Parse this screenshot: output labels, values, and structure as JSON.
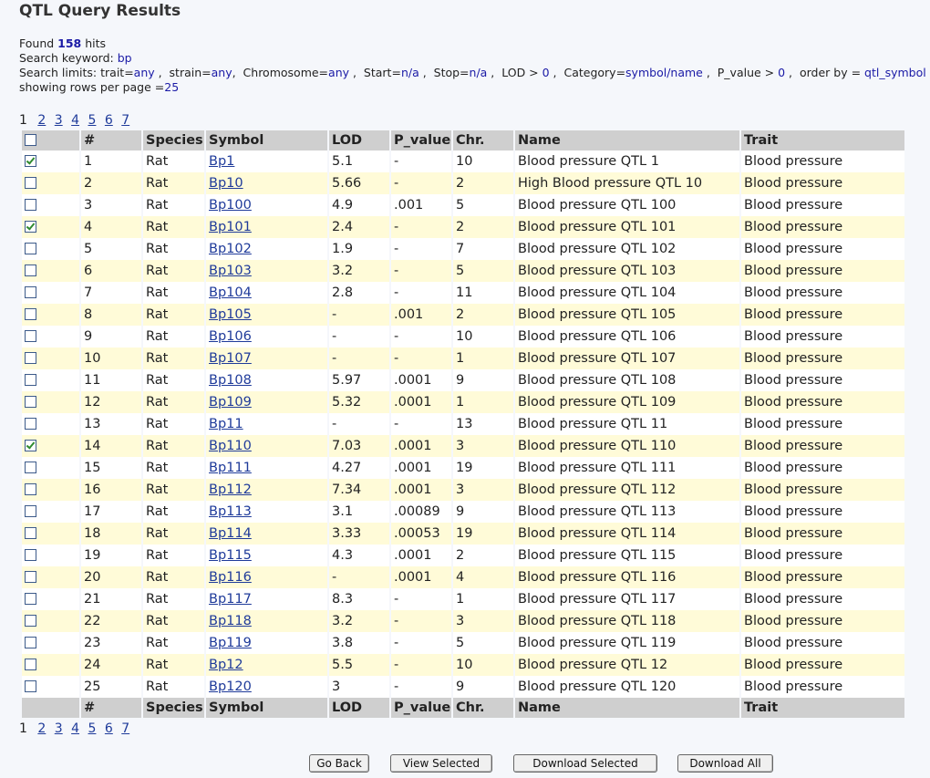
{
  "page": {
    "title": "QTL Query Results"
  },
  "summary": {
    "found_prefix": "Found",
    "found_count": "158",
    "found_suffix": "hits",
    "keyword_label": "Search keyword:",
    "keyword": "bp",
    "limits_label": "Search limits:",
    "trait": "any",
    "strain": "any",
    "chromosome": "any",
    "start": "n/a",
    "stop": "n/a",
    "lod": "0",
    "category": "symbol/name",
    "p_value": "0",
    "order_by": "qtl_symbol",
    "rows_per_page_label": "showing rows per page =",
    "rows_per_page": "25"
  },
  "pagination": {
    "current": "1",
    "pages": [
      "2",
      "3",
      "4",
      "5",
      "6",
      "7"
    ]
  },
  "table": {
    "headers": [
      "#",
      "Species",
      "Symbol",
      "LOD",
      "P_value",
      "Chr.",
      "Name",
      "Trait"
    ],
    "rows": [
      {
        "checked": true,
        "num": "1",
        "species": "Rat",
        "symbol": "Bp1",
        "lod": "5.1",
        "p": "-",
        "chr": "10",
        "name": "Blood pressure QTL 1",
        "trait": "Blood pressure"
      },
      {
        "checked": false,
        "num": "2",
        "species": "Rat",
        "symbol": "Bp10",
        "lod": "5.66",
        "p": "-",
        "chr": "2",
        "name": "High Blood pressure QTL 10",
        "trait": "Blood pressure"
      },
      {
        "checked": false,
        "num": "3",
        "species": "Rat",
        "symbol": "Bp100",
        "lod": "4.9",
        "p": ".001",
        "chr": "5",
        "name": "Blood pressure QTL 100",
        "trait": "Blood pressure"
      },
      {
        "checked": true,
        "num": "4",
        "species": "Rat",
        "symbol": "Bp101",
        "lod": "2.4",
        "p": "-",
        "chr": "2",
        "name": "Blood pressure QTL 101",
        "trait": "Blood pressure"
      },
      {
        "checked": false,
        "num": "5",
        "species": "Rat",
        "symbol": "Bp102",
        "lod": "1.9",
        "p": "-",
        "chr": "7",
        "name": "Blood pressure QTL 102",
        "trait": "Blood pressure"
      },
      {
        "checked": false,
        "num": "6",
        "species": "Rat",
        "symbol": "Bp103",
        "lod": "3.2",
        "p": "-",
        "chr": "5",
        "name": "Blood pressure QTL 103",
        "trait": "Blood pressure"
      },
      {
        "checked": false,
        "num": "7",
        "species": "Rat",
        "symbol": "Bp104",
        "lod": "2.8",
        "p": "-",
        "chr": "11",
        "name": "Blood pressure QTL 104",
        "trait": "Blood pressure"
      },
      {
        "checked": false,
        "num": "8",
        "species": "Rat",
        "symbol": "Bp105",
        "lod": "-",
        "p": ".001",
        "chr": "2",
        "name": "Blood pressure QTL 105",
        "trait": "Blood pressure"
      },
      {
        "checked": false,
        "num": "9",
        "species": "Rat",
        "symbol": "Bp106",
        "lod": "-",
        "p": "-",
        "chr": "10",
        "name": "Blood pressure QTL 106",
        "trait": "Blood pressure"
      },
      {
        "checked": false,
        "num": "10",
        "species": "Rat",
        "symbol": "Bp107",
        "lod": "-",
        "p": "-",
        "chr": "1",
        "name": "Blood pressure QTL 107",
        "trait": "Blood pressure"
      },
      {
        "checked": false,
        "num": "11",
        "species": "Rat",
        "symbol": "Bp108",
        "lod": "5.97",
        "p": ".0001",
        "chr": "9",
        "name": "Blood pressure QTL 108",
        "trait": "Blood pressure"
      },
      {
        "checked": false,
        "num": "12",
        "species": "Rat",
        "symbol": "Bp109",
        "lod": "5.32",
        "p": ".0001",
        "chr": "1",
        "name": "Blood pressure QTL 109",
        "trait": "Blood pressure"
      },
      {
        "checked": false,
        "num": "13",
        "species": "Rat",
        "symbol": "Bp11",
        "lod": "-",
        "p": "-",
        "chr": "13",
        "name": "Blood pressure QTL 11",
        "trait": "Blood pressure"
      },
      {
        "checked": true,
        "num": "14",
        "species": "Rat",
        "symbol": "Bp110",
        "lod": "7.03",
        "p": ".0001",
        "chr": "3",
        "name": "Blood pressure QTL 110",
        "trait": "Blood pressure"
      },
      {
        "checked": false,
        "num": "15",
        "species": "Rat",
        "symbol": "Bp111",
        "lod": "4.27",
        "p": ".0001",
        "chr": "19",
        "name": "Blood pressure QTL 111",
        "trait": "Blood pressure"
      },
      {
        "checked": false,
        "num": "16",
        "species": "Rat",
        "symbol": "Bp112",
        "lod": "7.34",
        "p": ".0001",
        "chr": "3",
        "name": "Blood pressure QTL 112",
        "trait": "Blood pressure"
      },
      {
        "checked": false,
        "num": "17",
        "species": "Rat",
        "symbol": "Bp113",
        "lod": "3.1",
        "p": ".00089",
        "chr": "9",
        "name": "Blood pressure QTL 113",
        "trait": "Blood pressure"
      },
      {
        "checked": false,
        "num": "18",
        "species": "Rat",
        "symbol": "Bp114",
        "lod": "3.33",
        "p": ".00053",
        "chr": "19",
        "name": "Blood pressure QTL 114",
        "trait": "Blood pressure"
      },
      {
        "checked": false,
        "num": "19",
        "species": "Rat",
        "symbol": "Bp115",
        "lod": "4.3",
        "p": ".0001",
        "chr": "2",
        "name": "Blood pressure QTL 115",
        "trait": "Blood pressure"
      },
      {
        "checked": false,
        "num": "20",
        "species": "Rat",
        "symbol": "Bp116",
        "lod": "-",
        "p": ".0001",
        "chr": "4",
        "name": "Blood pressure QTL 116",
        "trait": "Blood pressure"
      },
      {
        "checked": false,
        "num": "21",
        "species": "Rat",
        "symbol": "Bp117",
        "lod": "8.3",
        "p": "-",
        "chr": "1",
        "name": "Blood pressure QTL 117",
        "trait": "Blood pressure"
      },
      {
        "checked": false,
        "num": "22",
        "species": "Rat",
        "symbol": "Bp118",
        "lod": "3.2",
        "p": "-",
        "chr": "3",
        "name": "Blood pressure QTL 118",
        "trait": "Blood pressure"
      },
      {
        "checked": false,
        "num": "23",
        "species": "Rat",
        "symbol": "Bp119",
        "lod": "3.8",
        "p": "-",
        "chr": "5",
        "name": "Blood pressure QTL 119",
        "trait": "Blood pressure"
      },
      {
        "checked": false,
        "num": "24",
        "species": "Rat",
        "symbol": "Bp12",
        "lod": "5.5",
        "p": "-",
        "chr": "10",
        "name": "Blood pressure QTL 12",
        "trait": "Blood pressure"
      },
      {
        "checked": false,
        "num": "25",
        "species": "Rat",
        "symbol": "Bp120",
        "lod": "3",
        "p": "-",
        "chr": "9",
        "name": "Blood pressure QTL 120",
        "trait": "Blood pressure"
      }
    ]
  },
  "buttons": {
    "go_back": "Go Back",
    "view_selected": "View Selected",
    "download_selected": "Download Selected",
    "download_all": "Download All"
  },
  "colors": {
    "link": "#1f3b9a",
    "row_alt": "#fffbd8",
    "header_bg": "#cfcfcf",
    "value_text": "#1a1aa6"
  }
}
